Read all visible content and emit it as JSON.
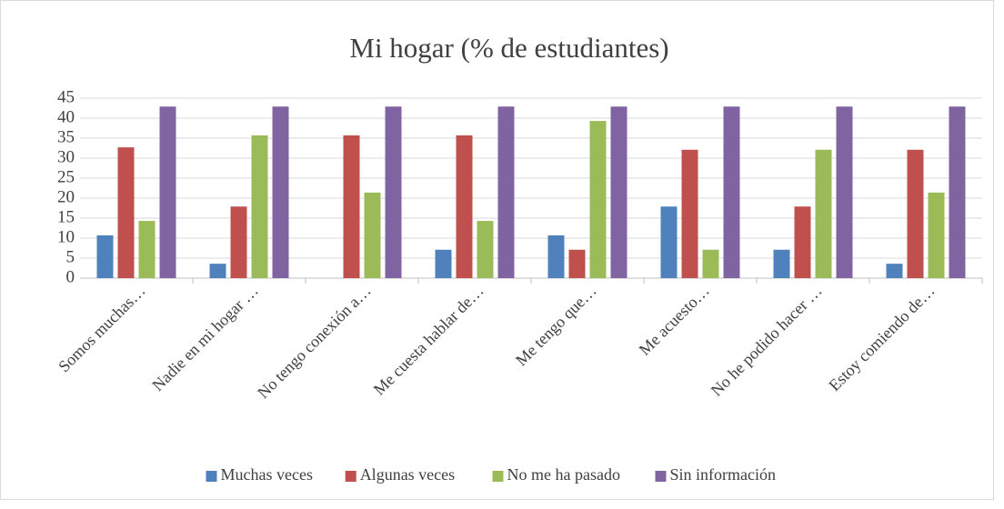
{
  "chart_data": {
    "type": "bar",
    "title": "Mi hogar (% de estudiantes)",
    "categories": [
      "Somos muchas…",
      "Nadie en mi hogar …",
      "No tengo conexión a…",
      "Me cuesta hablar de…",
      "Me tengo que…",
      "Me acuesto…",
      "No he podido hacer …",
      "Estoy comiendo de…"
    ],
    "series": [
      {
        "name": "Muchas veces",
        "color": "#4f81bd",
        "values": [
          10.7,
          3.6,
          0,
          7.1,
          10.7,
          17.9,
          7.1,
          3.6
        ]
      },
      {
        "name": "Algunas veces",
        "color": "#c0504d",
        "values": [
          32.7,
          17.9,
          35.7,
          35.7,
          7.1,
          32.1,
          17.9,
          32.1
        ]
      },
      {
        "name": "No me ha pasado",
        "color": "#9bbb59",
        "values": [
          14.3,
          35.7,
          21.4,
          14.3,
          39.3,
          7.1,
          32.1,
          21.4
        ]
      },
      {
        "name": "Sin información",
        "color": "#8064a2",
        "values": [
          42.9,
          42.9,
          42.9,
          42.9,
          42.9,
          42.9,
          42.9,
          42.9
        ]
      }
    ],
    "ylim": [
      0,
      45
    ],
    "yticks": [
      0,
      5,
      10,
      15,
      20,
      25,
      30,
      35,
      40,
      45
    ],
    "grid": true,
    "legend": "bottom"
  }
}
